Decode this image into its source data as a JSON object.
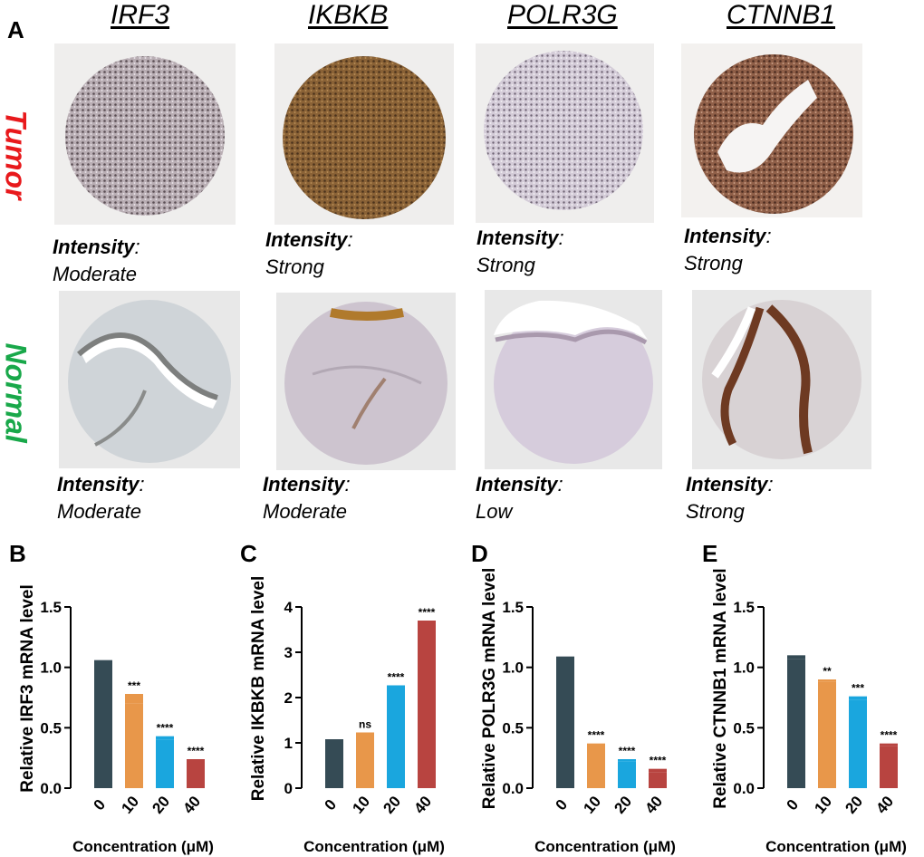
{
  "panel_a": {
    "letter": "A",
    "genes": [
      "IRF3",
      "IKBKB",
      "POLR3G",
      "CTNNB1"
    ],
    "rows": {
      "tumor": {
        "label": "Tumor",
        "color": "#e8191c",
        "intensities": [
          "Moderate",
          "Strong",
          "Strong",
          "Strong"
        ]
      },
      "normal": {
        "label": "Normal",
        "color": "#19a84a",
        "intensities": [
          "Moderate",
          "Moderate",
          "Low",
          "Strong"
        ]
      }
    },
    "intensity_prefix": "Intensity",
    "intensity_colon": ":"
  },
  "chart_data": [
    {
      "type": "bar",
      "panel": "B",
      "categories": [
        "0",
        "10",
        "20",
        "40"
      ],
      "values": [
        1.02,
        0.7,
        0.4,
        0.21
      ],
      "errors": [
        0.04,
        0.08,
        0.03,
        0.03
      ],
      "significance": [
        "",
        "***",
        "****",
        "****"
      ],
      "colors": [
        "#354b55",
        "#e8974a",
        "#1aa6de",
        "#b84440"
      ],
      "ylabel": "Relative IRF3 mRNA level",
      "xlabel": "Concentration (μM)",
      "ylim": [
        0,
        1.5
      ],
      "yticks": [
        "0.0",
        "0.5",
        "1.0",
        "1.5"
      ]
    },
    {
      "type": "bar",
      "panel": "C",
      "categories": [
        "0",
        "10",
        "20",
        "40"
      ],
      "values": [
        1.02,
        1.13,
        2.2,
        3.6
      ],
      "errors": [
        0.06,
        0.1,
        0.07,
        0.1
      ],
      "significance": [
        "",
        "ns",
        "****",
        "****"
      ],
      "colors": [
        "#354b55",
        "#e8974a",
        "#1aa6de",
        "#b84440"
      ],
      "ylabel": "Relative IKBKB mRNA level",
      "xlabel": "Concentration (μM)",
      "ylim": [
        0,
        4
      ],
      "yticks": [
        "0",
        "1",
        "2",
        "3",
        "4"
      ]
    },
    {
      "type": "bar",
      "panel": "D",
      "categories": [
        "0",
        "10",
        "20",
        "40"
      ],
      "values": [
        1.05,
        0.33,
        0.22,
        0.13
      ],
      "errors": [
        0.04,
        0.04,
        0.02,
        0.03
      ],
      "significance": [
        "",
        "****",
        "****",
        "****"
      ],
      "colors": [
        "#354b55",
        "#e8974a",
        "#1aa6de",
        "#b84440"
      ],
      "ylabel": "Relative POLR3G mRNA level",
      "xlabel": "Concentration (μM)",
      "ylim": [
        0,
        1.5
      ],
      "yticks": [
        "0.0",
        "0.5",
        "1.0",
        "1.5"
      ]
    },
    {
      "type": "bar",
      "panel": "E",
      "categories": [
        "0",
        "10",
        "20",
        "40"
      ],
      "values": [
        1.07,
        0.88,
        0.73,
        0.35
      ],
      "errors": [
        0.03,
        0.02,
        0.03,
        0.02
      ],
      "significance": [
        "",
        "**",
        "***",
        "****"
      ],
      "colors": [
        "#354b55",
        "#e8974a",
        "#1aa6de",
        "#b84440"
      ],
      "ylabel": "Relative CTNNB1 mRNA level",
      "xlabel": "Concentration (μM)",
      "ylim": [
        0,
        1.5
      ],
      "yticks": [
        "0.0",
        "0.5",
        "1.0",
        "1.5"
      ]
    }
  ]
}
